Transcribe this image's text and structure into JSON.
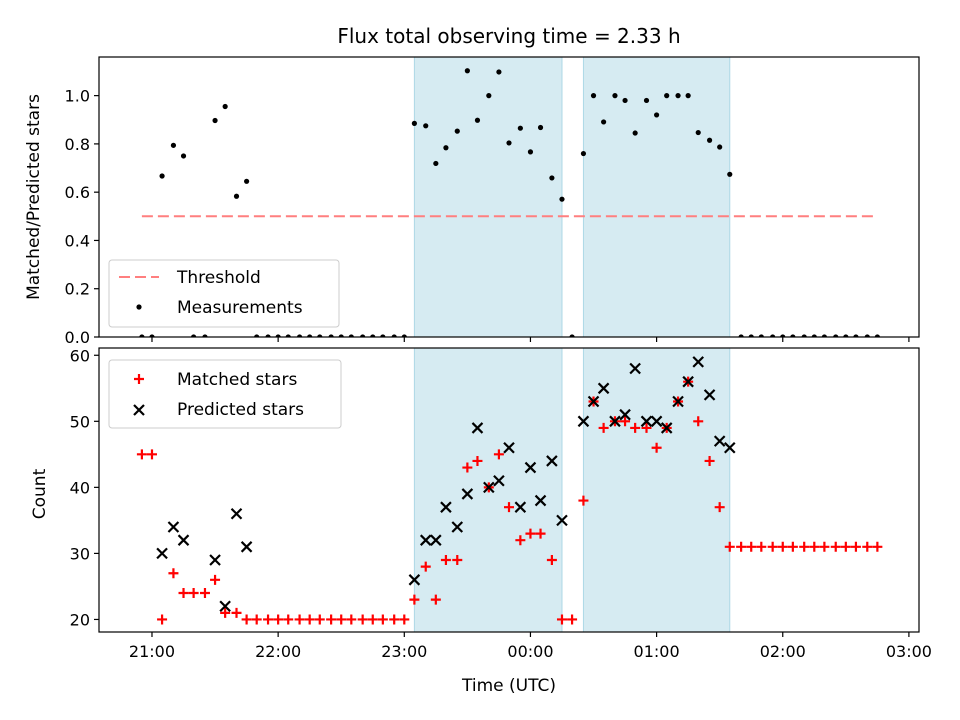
{
  "chart_data": {
    "title": "Flux total observing time = 2.33 h",
    "xlabel": "Time (UTC)",
    "xlim_hours": [
      20.58,
      27.08
    ],
    "x_ticks": [
      {
        "value": 21.0,
        "label": "21:00"
      },
      {
        "value": 22.0,
        "label": "22:00"
      },
      {
        "value": 23.0,
        "label": "23:00"
      },
      {
        "value": 24.0,
        "label": "00:00"
      },
      {
        "value": 25.0,
        "label": "01:00"
      },
      {
        "value": 26.0,
        "label": "02:00"
      },
      {
        "value": 27.0,
        "label": "03:00"
      }
    ],
    "observing_windows": [
      [
        23.08,
        24.25
      ],
      [
        24.42,
        25.58
      ]
    ],
    "colors": {
      "window": "#add8e6",
      "threshold": "#ff7f7f",
      "matched": "#ff0000",
      "predicted": "#000000",
      "measurement": "#000000"
    },
    "panels": [
      {
        "type": "scatter",
        "ylabel": "Matched/Predicted stars",
        "ylim": [
          0,
          1.16
        ],
        "y_ticks": [
          {
            "value": 0.0,
            "label": "0.0"
          },
          {
            "value": 0.2,
            "label": "0.2"
          },
          {
            "value": 0.4,
            "label": "0.4"
          },
          {
            "value": 0.6,
            "label": "0.6"
          },
          {
            "value": 0.8,
            "label": "0.8"
          },
          {
            "value": 1.0,
            "label": "1.0"
          }
        ],
        "threshold": {
          "name": "Threshold",
          "y": 0.5,
          "x_range": [
            20.92,
            26.75
          ]
        },
        "series": [
          {
            "name": "Measurements",
            "x": [
              20.92,
              21.0,
              21.08,
              21.17,
              21.25,
              21.33,
              21.42,
              21.5,
              21.58,
              21.67,
              21.75,
              21.83,
              21.92,
              22.0,
              22.08,
              22.17,
              22.25,
              22.33,
              22.42,
              22.5,
              22.58,
              22.67,
              22.75,
              22.83,
              22.92,
              23.0,
              23.08,
              23.17,
              23.25,
              23.33,
              23.42,
              23.5,
              23.58,
              23.67,
              23.75,
              23.83,
              23.92,
              24.0,
              24.08,
              24.17,
              24.25,
              24.33,
              24.42,
              24.5,
              24.58,
              24.67,
              24.75,
              24.83,
              24.92,
              25.0,
              25.08,
              25.17,
              25.25,
              25.33,
              25.42,
              25.5,
              25.58,
              25.67,
              25.75,
              25.83,
              25.92,
              26.0,
              26.08,
              26.17,
              26.25,
              26.33,
              26.42,
              26.5,
              26.58,
              26.67,
              26.75
            ],
            "y": [
              0,
              0,
              0.667,
              0.794,
              0.75,
              0,
              0,
              0.897,
              0.955,
              0.583,
              0.645,
              0,
              0,
              0,
              0,
              0,
              0,
              0,
              0,
              0,
              0,
              0,
              0,
              0,
              0,
              0,
              0.885,
              0.875,
              0.719,
              0.784,
              0.853,
              1.103,
              0.898,
              1.0,
              1.098,
              0.804,
              0.865,
              0.767,
              0.868,
              0.659,
              0.571,
              0,
              0.76,
              1.0,
              0.891,
              1.0,
              0.98,
              0.845,
              0.98,
              0.92,
              1.0,
              1.0,
              1.0,
              0.847,
              0.815,
              0.787,
              0.674,
              0,
              0,
              0,
              0,
              0,
              0,
              0,
              0,
              0,
              0,
              0,
              0,
              0,
              0
            ]
          }
        ],
        "legend_position": "lower-left"
      },
      {
        "type": "scatter",
        "ylabel": "Count",
        "ylim": [
          18.1,
          61.1
        ],
        "y_ticks": [
          {
            "value": 20,
            "label": "20"
          },
          {
            "value": 30,
            "label": "30"
          },
          {
            "value": 40,
            "label": "40"
          },
          {
            "value": 50,
            "label": "50"
          },
          {
            "value": 60,
            "label": "60"
          }
        ],
        "series": [
          {
            "name": "Matched stars",
            "marker": "plus",
            "x": [
              20.92,
              21.0,
              21.08,
              21.17,
              21.25,
              21.33,
              21.42,
              21.5,
              21.58,
              21.67,
              21.75,
              21.83,
              21.92,
              22.0,
              22.08,
              22.17,
              22.25,
              22.33,
              22.42,
              22.5,
              22.58,
              22.67,
              22.75,
              22.83,
              22.92,
              23.0,
              23.08,
              23.17,
              23.25,
              23.33,
              23.42,
              23.5,
              23.58,
              23.67,
              23.75,
              23.83,
              23.92,
              24.0,
              24.08,
              24.17,
              24.25,
              24.33,
              24.42,
              24.5,
              24.58,
              24.67,
              24.75,
              24.83,
              24.92,
              25.0,
              25.08,
              25.17,
              25.25,
              25.33,
              25.42,
              25.5,
              25.58,
              25.67,
              25.75,
              25.83,
              25.92,
              26.0,
              26.08,
              26.17,
              26.25,
              26.33,
              26.42,
              26.5,
              26.58,
              26.67,
              26.75
            ],
            "y": [
              45,
              45,
              20,
              27,
              24,
              24,
              24,
              26,
              21,
              21,
              20,
              20,
              20,
              20,
              20,
              20,
              20,
              20,
              20,
              20,
              20,
              20,
              20,
              20,
              20,
              20,
              23,
              28,
              23,
              29,
              29,
              43,
              44,
              40,
              45,
              37,
              32,
              33,
              33,
              29,
              20,
              20,
              38,
              53,
              49,
              50,
              50,
              49,
              49,
              46,
              49,
              53,
              56,
              50,
              44,
              37,
              31,
              31,
              31,
              31,
              31,
              31,
              31,
              31,
              31,
              31,
              31,
              31,
              31,
              31,
              31
            ]
          },
          {
            "name": "Predicted stars",
            "marker": "x",
            "x": [
              21.08,
              21.17,
              21.25,
              21.5,
              21.58,
              21.67,
              21.75,
              23.08,
              23.17,
              23.25,
              23.33,
              23.42,
              23.5,
              23.58,
              23.67,
              23.75,
              23.83,
              23.92,
              24.0,
              24.08,
              24.17,
              24.25,
              24.42,
              24.5,
              24.58,
              24.67,
              24.75,
              24.83,
              24.92,
              25.0,
              25.08,
              25.17,
              25.25,
              25.33,
              25.42,
              25.5,
              25.58
            ],
            "y": [
              30,
              34,
              32,
              29,
              22,
              36,
              31,
              26,
              32,
              32,
              37,
              34,
              39,
              49,
              40,
              41,
              46,
              37,
              43,
              38,
              44,
              35,
              50,
              53,
              55,
              50,
              51,
              58,
              50,
              50,
              49,
              53,
              56,
              59,
              54,
              47,
              46
            ]
          }
        ],
        "legend_position": "upper-left"
      }
    ]
  }
}
